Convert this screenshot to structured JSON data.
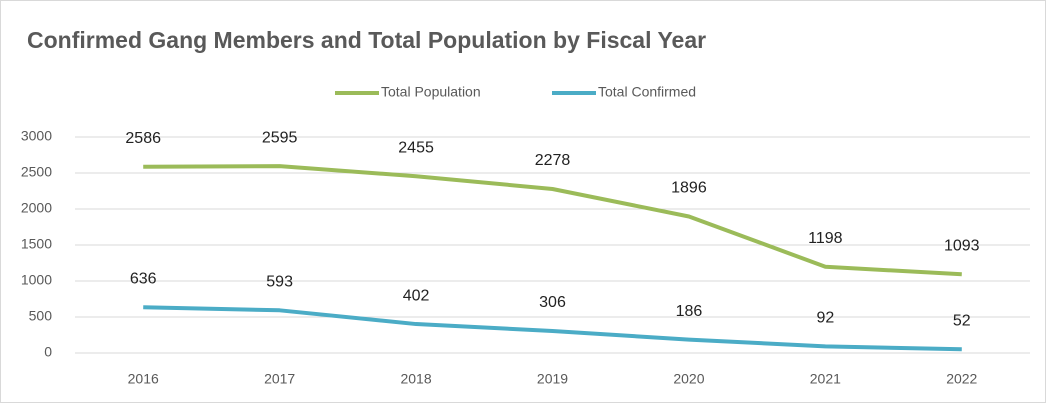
{
  "chart_data": {
    "type": "line",
    "title": "Confirmed Gang Members and Total Population by Fiscal Year",
    "categories": [
      "2016",
      "2017",
      "2018",
      "2019",
      "2020",
      "2021",
      "2022"
    ],
    "series": [
      {
        "name": "Total Population",
        "color": "#9bbb59",
        "values": [
          2586,
          2595,
          2455,
          2278,
          1896,
          1198,
          1093
        ]
      },
      {
        "name": "Total Confirmed",
        "color": "#4bacc6",
        "values": [
          636,
          593,
          402,
          306,
          186,
          92,
          52
        ]
      }
    ],
    "ylim": [
      0,
      3000
    ],
    "yticks": [
      0,
      500,
      1000,
      1500,
      2000,
      2500,
      3000
    ],
    "grid": true,
    "legend": "top"
  }
}
